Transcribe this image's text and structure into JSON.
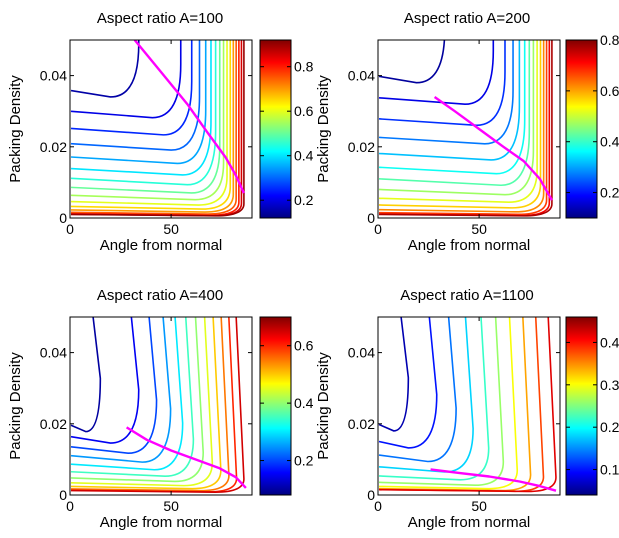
{
  "chart_data": [
    {
      "type": "contour",
      "title": "Aspect ratio A=100",
      "xlabel": "Angle from normal",
      "ylabel": "Packing Density",
      "xlim": [
        0,
        90
      ],
      "ylim": [
        0,
        0.05
      ],
      "xticks": [
        "0",
        "50"
      ],
      "xtick_values": [
        0,
        50
      ],
      "yticks": [
        "0",
        "0.02",
        "0.04"
      ],
      "ytick_values": [
        0,
        0.02,
        0.04
      ],
      "colorbar": {
        "min": 0.12,
        "max": 0.92,
        "ticks": [
          "0.2",
          "0.4",
          "0.6",
          "0.8"
        ],
        "tick_values": [
          0.2,
          0.4,
          0.6,
          0.8
        ]
      },
      "contour_levels": [
        0.15,
        0.2,
        0.25,
        0.3,
        0.35,
        0.4,
        0.45,
        0.5,
        0.55,
        0.6,
        0.65,
        0.7,
        0.75,
        0.8,
        0.85,
        0.9
      ],
      "contour_x_end": 86,
      "curve": [
        [
          32,
          0.05
        ],
        [
          45,
          0.041
        ],
        [
          58,
          0.032
        ],
        [
          68,
          0.024
        ],
        [
          77,
          0.017
        ],
        [
          82,
          0.012
        ],
        [
          86,
          0.007
        ]
      ]
    },
    {
      "type": "contour",
      "title": "Aspect ratio A=200",
      "xlabel": "Angle from normal",
      "ylabel": "Packing Density",
      "xlim": [
        0,
        90
      ],
      "ylim": [
        0,
        0.05
      ],
      "xticks": [
        "0",
        "50"
      ],
      "xtick_values": [
        0,
        50
      ],
      "yticks": [
        "0",
        "0.02",
        "0.04"
      ],
      "ytick_values": [
        0,
        0.02,
        0.04
      ],
      "colorbar": {
        "min": 0.1,
        "max": 0.8,
        "ticks": [
          "0.2",
          "0.4",
          "0.6",
          "0.8"
        ],
        "tick_values": [
          0.2,
          0.4,
          0.6,
          0.8
        ]
      },
      "contour_levels": [
        0.12,
        0.17,
        0.22,
        0.27,
        0.32,
        0.37,
        0.42,
        0.47,
        0.52,
        0.57,
        0.62,
        0.67,
        0.72,
        0.77
      ],
      "contour_x_end": 86,
      "curve": [
        [
          28,
          0.034
        ],
        [
          38,
          0.03
        ],
        [
          50,
          0.025
        ],
        [
          62,
          0.02
        ],
        [
          72,
          0.016
        ],
        [
          80,
          0.011
        ],
        [
          86,
          0.005
        ]
      ]
    },
    {
      "type": "contour",
      "title": "Aspect ratio A=400",
      "xlabel": "Angle from normal",
      "ylabel": "Packing Density",
      "xlim": [
        0,
        90
      ],
      "ylim": [
        0,
        0.05
      ],
      "xticks": [
        "0",
        "50"
      ],
      "xtick_values": [
        0,
        50
      ],
      "yticks": [
        "0",
        "0.02",
        "0.04"
      ],
      "ytick_values": [
        0,
        0.02,
        0.04
      ],
      "colorbar": {
        "min": 0.08,
        "max": 0.7,
        "ticks": [
          "0.2",
          "0.4",
          "0.6"
        ],
        "tick_values": [
          0.2,
          0.4,
          0.6
        ]
      },
      "contour_levels": [
        0.1,
        0.15,
        0.2,
        0.25,
        0.3,
        0.35,
        0.4,
        0.45,
        0.5,
        0.55,
        0.6,
        0.65
      ],
      "contour_x_end": 86,
      "curve": [
        [
          28,
          0.019
        ],
        [
          38,
          0.0155
        ],
        [
          50,
          0.0125
        ],
        [
          62,
          0.01
        ],
        [
          74,
          0.0075
        ],
        [
          82,
          0.005
        ],
        [
          87,
          0.002
        ]
      ]
    },
    {
      "type": "contour",
      "title": "Aspect ratio A=1100",
      "xlabel": "Angle from normal",
      "ylabel": "Packing Density",
      "xlim": [
        0,
        90
      ],
      "ylim": [
        0,
        0.05
      ],
      "xticks": [
        "0",
        "50"
      ],
      "xtick_values": [
        0,
        50
      ],
      "yticks": [
        "0",
        "0.02",
        "0.04"
      ],
      "ytick_values": [
        0,
        0.02,
        0.04
      ],
      "colorbar": {
        "min": 0.04,
        "max": 0.46,
        "ticks": [
          "0.1",
          "0.2",
          "0.3",
          "0.4"
        ],
        "tick_values": [
          0.1,
          0.2,
          0.3,
          0.4
        ]
      },
      "contour_levels": [
        0.06,
        0.1,
        0.14,
        0.18,
        0.22,
        0.26,
        0.3,
        0.34,
        0.38,
        0.42
      ],
      "contour_x_end": 88,
      "curve": [
        [
          26,
          0.0072
        ],
        [
          40,
          0.0062
        ],
        [
          55,
          0.0052
        ],
        [
          70,
          0.0038
        ],
        [
          80,
          0.0025
        ],
        [
          88,
          0.0012
        ]
      ]
    }
  ]
}
